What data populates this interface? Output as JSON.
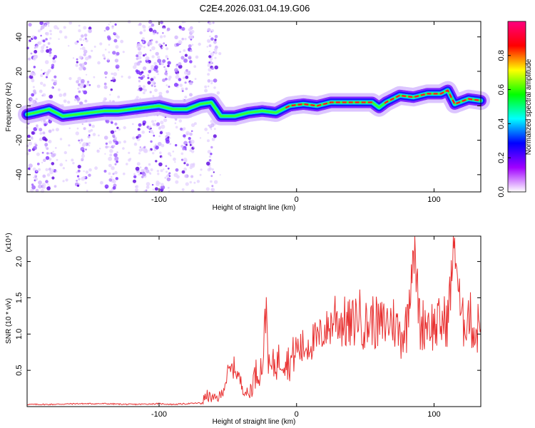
{
  "title": "C2E4.2026.031.04.19.G06",
  "chart_data": [
    {
      "type": "heatmap",
      "xlabel": "Height of straight line (km)",
      "ylabel": "Frequency (Hz)",
      "xlim": [
        -196,
        134
      ],
      "ylim": [
        -50,
        49
      ],
      "xticks": [
        -100,
        0,
        100
      ],
      "yticks": [
        -40,
        -20,
        0,
        20,
        40
      ],
      "colorbar": {
        "label": "Normalized spectral amplitude",
        "range": [
          0.0,
          1.0
        ],
        "ticks": [
          0.0,
          0.2,
          0.4,
          0.6,
          0.8
        ],
        "colormap": [
          "#ffffff",
          "#a000ff",
          "#0000ff",
          "#00ffff",
          "#00ff00",
          "#ffff00",
          "#ff0000",
          "#ff0080"
        ]
      },
      "ridge": [
        {
          "x": -196,
          "y": -5
        },
        {
          "x": -190,
          "y": -4
        },
        {
          "x": -180,
          "y": -2
        },
        {
          "x": -170,
          "y": -6
        },
        {
          "x": -160,
          "y": -5
        },
        {
          "x": -150,
          "y": -4
        },
        {
          "x": -140,
          "y": -3
        },
        {
          "x": -130,
          "y": -3
        },
        {
          "x": -120,
          "y": -2
        },
        {
          "x": -110,
          "y": -1
        },
        {
          "x": -100,
          "y": 0
        },
        {
          "x": -90,
          "y": -2
        },
        {
          "x": -80,
          "y": -2
        },
        {
          "x": -70,
          "y": 1
        },
        {
          "x": -62,
          "y": 2
        },
        {
          "x": -55,
          "y": -6
        },
        {
          "x": -45,
          "y": -6
        },
        {
          "x": -35,
          "y": -4
        },
        {
          "x": -25,
          "y": -3
        },
        {
          "x": -15,
          "y": -4
        },
        {
          "x": -5,
          "y": 0
        },
        {
          "x": 5,
          "y": 1
        },
        {
          "x": 15,
          "y": 0
        },
        {
          "x": 25,
          "y": 2
        },
        {
          "x": 35,
          "y": 2
        },
        {
          "x": 45,
          "y": 2
        },
        {
          "x": 55,
          "y": 2
        },
        {
          "x": 60,
          "y": -1
        },
        {
          "x": 65,
          "y": 2
        },
        {
          "x": 75,
          "y": 6
        },
        {
          "x": 85,
          "y": 5
        },
        {
          "x": 95,
          "y": 7
        },
        {
          "x": 105,
          "y": 7
        },
        {
          "x": 110,
          "y": 9
        },
        {
          "x": 115,
          "y": 1
        },
        {
          "x": 125,
          "y": 4
        },
        {
          "x": 134,
          "y": 3
        }
      ],
      "noise_bands": [
        [
          -196,
          -175
        ],
        [
          -160,
          -150
        ],
        [
          -140,
          -130
        ],
        [
          -118,
          -92
        ],
        [
          -88,
          -75
        ],
        [
          -65,
          -58
        ]
      ]
    },
    {
      "type": "line",
      "xlabel": "Height of straight line (km)",
      "ylabel": "SNR (10 * v/v)",
      "yscale_label": "(x10⁴)",
      "xlim": [
        -196,
        134
      ],
      "ylim": [
        0,
        2.35
      ],
      "xticks": [
        -100,
        0,
        100
      ],
      "yticks": [
        0.5,
        1.0,
        1.5,
        2.0
      ],
      "color": "#e83030",
      "series": [
        {
          "x": [
            -196,
            -180,
            -160,
            -140,
            -120,
            -100,
            -90,
            -80,
            -70,
            -65,
            -60,
            -55,
            -50,
            -45,
            -40,
            -35,
            -30,
            -25,
            -22,
            -20,
            -15,
            -10,
            -5,
            0,
            5,
            10,
            15,
            20,
            25,
            28,
            30,
            35,
            40,
            45,
            50,
            55,
            60,
            65,
            70,
            75,
            80,
            85,
            90,
            95,
            100,
            105,
            110,
            115,
            120,
            125,
            130,
            134
          ],
          "values": [
            0.03,
            0.03,
            0.04,
            0.04,
            0.03,
            0.04,
            0.03,
            0.04,
            0.05,
            0.15,
            0.1,
            0.15,
            0.45,
            0.55,
            0.3,
            0.15,
            0.45,
            0.55,
            1.4,
            0.5,
            0.6,
            0.7,
            0.6,
            0.8,
            0.8,
            0.9,
            0.9,
            1.05,
            1.1,
            1.3,
            1.2,
            1.15,
            1.1,
            1.3,
            1.1,
            1.2,
            1.1,
            1.15,
            1.2,
            1.0,
            1.1,
            2.25,
            1.1,
            1.2,
            1.1,
            1.15,
            1.2,
            2.3,
            1.1,
            1.3,
            1.0,
            1.2
          ]
        }
      ]
    }
  ]
}
